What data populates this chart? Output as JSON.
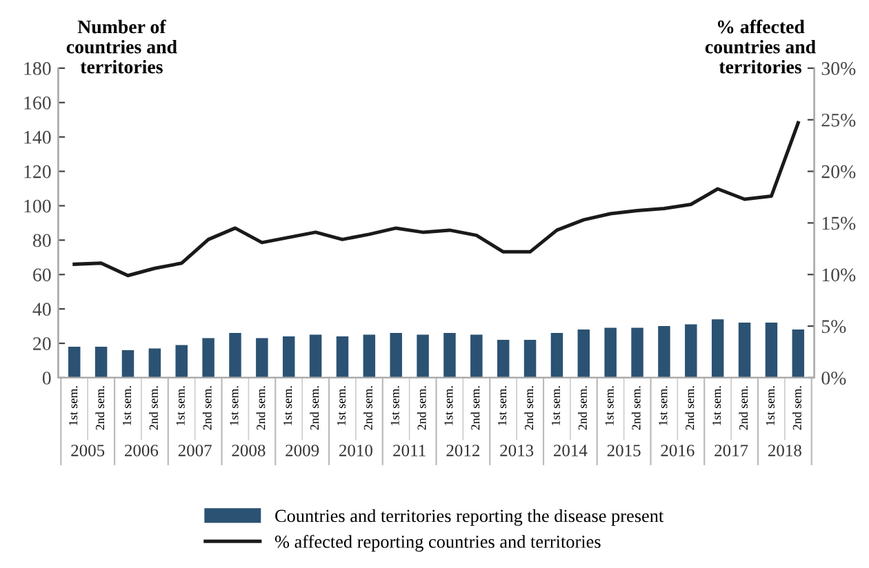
{
  "chart_data": {
    "type": "bar",
    "ylabel": "Number of countries and territories",
    "y2label": "% affected countries and territories",
    "categories": [
      "1st sem.",
      "2nd sem.",
      "1st sem.",
      "2nd sem.",
      "1st sem.",
      "2nd sem.",
      "1st sem.",
      "2nd sem.",
      "1st sem.",
      "2nd sem.",
      "1st sem.",
      "2nd sem.",
      "1st sem.",
      "2nd sem.",
      "1st sem.",
      "2nd sem.",
      "1st sem.",
      "2nd sem.",
      "1st sem.",
      "2nd sem.",
      "1st sem.",
      "2nd sem.",
      "1st sem.",
      "2nd sem.",
      "1st sem.",
      "2nd sem.",
      "1st sem.",
      "2nd sem."
    ],
    "series": [
      {
        "name": "Countries and territories reporting the disease present",
        "color": "#2b5273",
        "values": [
          18,
          18,
          16,
          17,
          19,
          23,
          26,
          23,
          24,
          25,
          24,
          25,
          26,
          25,
          26,
          25,
          22,
          22,
          26,
          28,
          29,
          29,
          30,
          31,
          34,
          32,
          32,
          28
        ]
      },
      {
        "name": "% affected reporting countries and territories",
        "type": "line",
        "axis": "y2",
        "color": "#1a1a1a",
        "values": [
          11.0,
          11.1,
          9.9,
          10.6,
          11.1,
          13.4,
          14.5,
          13.1,
          13.6,
          14.1,
          13.4,
          13.9,
          14.5,
          14.1,
          14.3,
          13.8,
          12.2,
          12.2,
          14.3,
          15.3,
          15.9,
          16.2,
          16.4,
          16.8,
          18.3,
          17.3,
          17.6,
          24.7
        ]
      }
    ],
    "annotations": [
      "2005",
      "2006",
      "2007",
      "2008",
      "2009",
      "2010",
      "2011",
      "2012",
      "2013",
      "2014",
      "2015",
      "2016",
      "2017",
      "2018"
    ],
    "ylim": [
      0,
      180
    ],
    "yticks": [
      0,
      20,
      40,
      60,
      80,
      100,
      120,
      140,
      160,
      180
    ],
    "y2lim": [
      0,
      30
    ],
    "y2ticks": [
      {
        "value": 0,
        "label": "0%"
      },
      {
        "value": 5,
        "label": "5%"
      },
      {
        "value": 10,
        "label": "10%"
      },
      {
        "value": 15,
        "label": "15%"
      },
      {
        "value": 20,
        "label": "20%"
      },
      {
        "value": 25,
        "label": "25%"
      },
      {
        "value": 30,
        "label": "30%"
      }
    ],
    "grid": false,
    "legend": "bottom",
    "marker": "none",
    "line_style": "solid"
  }
}
